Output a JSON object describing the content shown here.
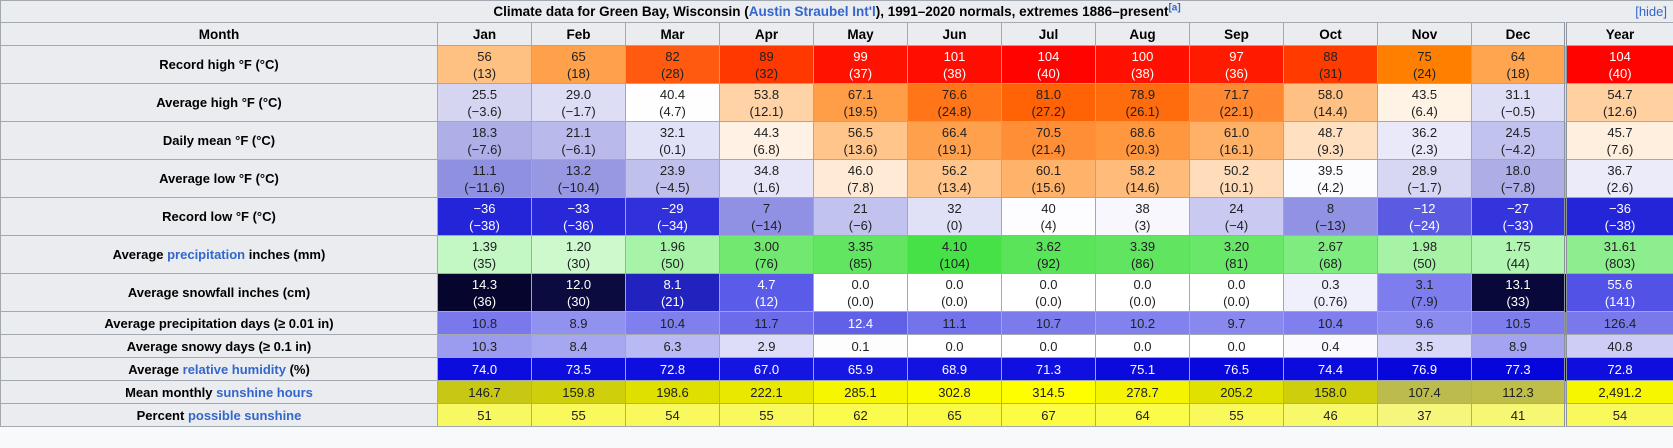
{
  "title": {
    "prefix": "Climate data for Green Bay, Wisconsin (",
    "link": "Austin Straubel Int'l",
    "suffix": "), 1991–2020 normals, extremes 1886–present",
    "note_ref": "[a]",
    "hide_label": "[hide]"
  },
  "columns": [
    "Month",
    "Jan",
    "Feb",
    "Mar",
    "Apr",
    "May",
    "Jun",
    "Jul",
    "Aug",
    "Sep",
    "Oct",
    "Nov",
    "Dec",
    "Year"
  ],
  "link_color": "#3366cc",
  "header_bg": "#eaecf0",
  "table": {
    "rows": [
      {
        "two_line": true,
        "label": [
          {
            "t": "Record high °F (°C)",
            "link": false
          }
        ],
        "cells": [
          {
            "v": "56",
            "m": "(13)",
            "bg": "#FFC182"
          },
          {
            "v": "65",
            "m": "(18)",
            "bg": "#FFA04A"
          },
          {
            "v": "82",
            "m": "(28)",
            "bg": "#FF5A0F"
          },
          {
            "v": "89",
            "m": "(32)",
            "bg": "#FF3800"
          },
          {
            "v": "99",
            "m": "(37)",
            "bg": "#FF1300",
            "fg": "#ffffff"
          },
          {
            "v": "101",
            "m": "(38)",
            "bg": "#FF0D00",
            "fg": "#ffffff"
          },
          {
            "v": "104",
            "m": "(40)",
            "bg": "#FF0300",
            "fg": "#ffffff"
          },
          {
            "v": "100",
            "m": "(38)",
            "bg": "#FF1000",
            "fg": "#ffffff"
          },
          {
            "v": "97",
            "m": "(36)",
            "bg": "#FF1A00",
            "fg": "#ffffff"
          },
          {
            "v": "88",
            "m": "(31)",
            "bg": "#FF3B00"
          },
          {
            "v": "75",
            "m": "(24)",
            "bg": "#FF8000"
          },
          {
            "v": "64",
            "m": "(18)",
            "bg": "#FFA54F"
          },
          {
            "v": "104",
            "m": "(40)",
            "bg": "#FF0300",
            "fg": "#ffffff"
          }
        ]
      },
      {
        "two_line": true,
        "label": [
          {
            "t": "Average high °F (°C)",
            "link": false
          }
        ],
        "cells": [
          {
            "v": "25.5",
            "m": "(−3.6)",
            "bg": "#D5D5F2"
          },
          {
            "v": "29.0",
            "m": "(−1.7)",
            "bg": "#DDDDF5"
          },
          {
            "v": "40.4",
            "m": "(4.7)",
            "bg": "#FEFEFF"
          },
          {
            "v": "53.8",
            "m": "(12.1)",
            "bg": "#FFD3A5"
          },
          {
            "v": "67.1",
            "m": "(19.5)",
            "bg": "#FF9E47"
          },
          {
            "v": "76.6",
            "m": "(24.8)",
            "bg": "#FF7517"
          },
          {
            "v": "81.0",
            "m": "(27.2)",
            "bg": "#FF6305"
          },
          {
            "v": "78.9",
            "m": "(26.1)",
            "bg": "#FF6C0D"
          },
          {
            "v": "71.7",
            "m": "(22.1)",
            "bg": "#FF8831"
          },
          {
            "v": "58.0",
            "m": "(14.4)",
            "bg": "#FFC183"
          },
          {
            "v": "43.5",
            "m": "(6.4)",
            "bg": "#FFF3E6"
          },
          {
            "v": "31.1",
            "m": "(−0.5)",
            "bg": "#DEDEF6"
          },
          {
            "v": "54.7",
            "m": "(12.6)",
            "bg": "#FFD0A0"
          }
        ]
      },
      {
        "two_line": true,
        "label": [
          {
            "t": "Daily mean °F (°C)",
            "link": false
          }
        ],
        "cells": [
          {
            "v": "18.3",
            "m": "(−7.6)",
            "bg": "#AFAFE8"
          },
          {
            "v": "21.1",
            "m": "(−6.1)",
            "bg": "#B9B9EB"
          },
          {
            "v": "32.1",
            "m": "(0.1)",
            "bg": "#E1E1F7"
          },
          {
            "v": "44.3",
            "m": "(6.8)",
            "bg": "#FFF1E3"
          },
          {
            "v": "56.5",
            "m": "(13.6)",
            "bg": "#FFC58B"
          },
          {
            "v": "66.4",
            "m": "(19.1)",
            "bg": "#FFA14C"
          },
          {
            "v": "70.5",
            "m": "(21.4)",
            "bg": "#FF8E36"
          },
          {
            "v": "68.6",
            "m": "(20.3)",
            "bg": "#FF973F"
          },
          {
            "v": "61.0",
            "m": "(16.1)",
            "bg": "#FFB168"
          },
          {
            "v": "48.7",
            "m": "(9.3)",
            "bg": "#FFE0C0"
          },
          {
            "v": "36.2",
            "m": "(2.3)",
            "bg": "#E9E9F9"
          },
          {
            "v": "24.5",
            "m": "(−4.2)",
            "bg": "#C2C2EE"
          },
          {
            "v": "45.7",
            "m": "(7.6)",
            "bg": "#FFEFDE"
          }
        ]
      },
      {
        "two_line": true,
        "label": [
          {
            "t": "Average low °F (°C)",
            "link": false
          }
        ],
        "cells": [
          {
            "v": "11.1",
            "m": "(−11.6)",
            "bg": "#9090E0"
          },
          {
            "v": "13.2",
            "m": "(−10.4)",
            "bg": "#9797E2"
          },
          {
            "v": "23.9",
            "m": "(−4.5)",
            "bg": "#C0C0ED"
          },
          {
            "v": "34.8",
            "m": "(1.6)",
            "bg": "#E6E6F8"
          },
          {
            "v": "46.0",
            "m": "(7.8)",
            "bg": "#FFEAD6"
          },
          {
            "v": "56.2",
            "m": "(13.4)",
            "bg": "#FFC58A"
          },
          {
            "v": "60.1",
            "m": "(15.6)",
            "bg": "#FFB269"
          },
          {
            "v": "58.2",
            "m": "(14.6)",
            "bg": "#FFBB79"
          },
          {
            "v": "50.2",
            "m": "(10.1)",
            "bg": "#FFDDBB"
          },
          {
            "v": "39.5",
            "m": "(4.2)",
            "bg": "#FCFCFE"
          },
          {
            "v": "28.9",
            "m": "(−1.7)",
            "bg": "#D7D7F3"
          },
          {
            "v": "18.0",
            "m": "(−7.8)",
            "bg": "#AEAEE7"
          },
          {
            "v": "36.7",
            "m": "(2.6)",
            "bg": "#EBEBFA"
          }
        ]
      },
      {
        "two_line": true,
        "label": [
          {
            "t": "Record low °F (°C)",
            "link": false
          }
        ],
        "cells": [
          {
            "v": "−36",
            "m": "(−38)",
            "bg": "#2424D8",
            "fg": "#ffffff"
          },
          {
            "v": "−33",
            "m": "(−36)",
            "bg": "#2828D9",
            "fg": "#ffffff"
          },
          {
            "v": "−29",
            "m": "(−34)",
            "bg": "#3131DB",
            "fg": "#ffffff"
          },
          {
            "v": "7",
            "m": "(−14)",
            "bg": "#9090E4"
          },
          {
            "v": "21",
            "m": "(−6)",
            "bg": "#C2C2EF"
          },
          {
            "v": "32",
            "m": "(0)",
            "bg": "#E0E0F7"
          },
          {
            "v": "40",
            "m": "(4)",
            "bg": "#FDFDFF"
          },
          {
            "v": "38",
            "m": "(3)",
            "bg": "#F7F7FD"
          },
          {
            "v": "24",
            "m": "(−4)",
            "bg": "#C9C9F1"
          },
          {
            "v": "8",
            "m": "(−13)",
            "bg": "#9292E5"
          },
          {
            "v": "−12",
            "m": "(−24)",
            "bg": "#5B5BE1",
            "fg": "#ffffff"
          },
          {
            "v": "−27",
            "m": "(−33)",
            "bg": "#3434DC",
            "fg": "#ffffff"
          },
          {
            "v": "−36",
            "m": "(−38)",
            "bg": "#2424D8",
            "fg": "#ffffff"
          }
        ]
      },
      {
        "two_line": true,
        "label": [
          {
            "t": "Average ",
            "link": false
          },
          {
            "t": "precipitation",
            "link": true
          },
          {
            "t": " inches (mm)",
            "link": false
          }
        ],
        "cells": [
          {
            "v": "1.39",
            "m": "(35)",
            "bg": "#C3F7C3"
          },
          {
            "v": "1.20",
            "m": "(30)",
            "bg": "#CDF9CD"
          },
          {
            "v": "1.96",
            "m": "(50)",
            "bg": "#A7F3A7"
          },
          {
            "v": "3.00",
            "m": "(76)",
            "bg": "#71E971"
          },
          {
            "v": "3.35",
            "m": "(85)",
            "bg": "#62E662"
          },
          {
            "v": "4.10",
            "m": "(104)",
            "bg": "#46E146"
          },
          {
            "v": "3.62",
            "m": "(92)",
            "bg": "#59E459"
          },
          {
            "v": "3.39",
            "m": "(86)",
            "bg": "#61E561"
          },
          {
            "v": "3.20",
            "m": "(81)",
            "bg": "#68E768"
          },
          {
            "v": "2.67",
            "m": "(68)",
            "bg": "#7FEC7F"
          },
          {
            "v": "1.98",
            "m": "(50)",
            "bg": "#A6F3A6"
          },
          {
            "v": "1.75",
            "m": "(44)",
            "bg": "#B0F5B0"
          },
          {
            "v": "31.61",
            "m": "(803)",
            "bg": "#8CEE8C"
          }
        ]
      },
      {
        "two_line": true,
        "label": [
          {
            "t": "Average snowfall inches (cm)",
            "link": false
          }
        ],
        "cells": [
          {
            "v": "14.3",
            "m": "(36)",
            "bg": "#05052D",
            "fg": "#ffffff"
          },
          {
            "v": "12.0",
            "m": "(30)",
            "bg": "#0B0B3F",
            "fg": "#ffffff"
          },
          {
            "v": "8.1",
            "m": "(21)",
            "bg": "#2222BE",
            "fg": "#ffffff"
          },
          {
            "v": "4.7",
            "m": "(12)",
            "bg": "#5B5BE9",
            "fg": "#ffffff"
          },
          {
            "v": "0.0",
            "m": "(0.0)",
            "bg": "#FFFFFF"
          },
          {
            "v": "0.0",
            "m": "(0.0)",
            "bg": "#FFFFFF"
          },
          {
            "v": "0.0",
            "m": "(0.0)",
            "bg": "#FFFFFF"
          },
          {
            "v": "0.0",
            "m": "(0.0)",
            "bg": "#FFFFFF"
          },
          {
            "v": "0.0",
            "m": "(0.0)",
            "bg": "#FFFFFF"
          },
          {
            "v": "0.3",
            "m": "(0.76)",
            "bg": "#F0F0FC"
          },
          {
            "v": "3.1",
            "m": "(7.9)",
            "bg": "#7D7DEE"
          },
          {
            "v": "13.1",
            "m": "(33)",
            "bg": "#08083A",
            "fg": "#ffffff"
          },
          {
            "v": "55.6",
            "m": "(141)",
            "bg": "#5252E7",
            "fg": "#ffffff"
          }
        ]
      },
      {
        "two_line": false,
        "label": [
          {
            "t": "Average precipitation days (≥ 0.01 in)",
            "link": false
          }
        ],
        "cells": [
          {
            "v": "10.8",
            "bg": "#7979EC"
          },
          {
            "v": "8.9",
            "bg": "#9191F0"
          },
          {
            "v": "10.4",
            "bg": "#7F7FED"
          },
          {
            "v": "11.7",
            "bg": "#6C6CEA"
          },
          {
            "v": "12.4",
            "bg": "#6161E8",
            "fg": "#ffffff"
          },
          {
            "v": "11.1",
            "bg": "#7373EB"
          },
          {
            "v": "10.7",
            "bg": "#7B7BEC"
          },
          {
            "v": "10.2",
            "bg": "#8282EE"
          },
          {
            "v": "9.7",
            "bg": "#8888EF"
          },
          {
            "v": "10.4",
            "bg": "#7F7FED"
          },
          {
            "v": "9.6",
            "bg": "#8A8AEF"
          },
          {
            "v": "10.5",
            "bg": "#7D7DED"
          },
          {
            "v": "126.4",
            "bg": "#7979EC"
          }
        ]
      },
      {
        "two_line": false,
        "label": [
          {
            "t": "Average snowy days (≥ 0.1 in)",
            "link": false
          }
        ],
        "cells": [
          {
            "v": "10.3",
            "bg": "#9B9BEF"
          },
          {
            "v": "8.4",
            "bg": "#A6A6F1"
          },
          {
            "v": "6.3",
            "bg": "#B9B9F4"
          },
          {
            "v": "2.9",
            "bg": "#DDDDF9"
          },
          {
            "v": "0.1",
            "bg": "#FDFDFE"
          },
          {
            "v": "0.0",
            "bg": "#FFFFFF"
          },
          {
            "v": "0.0",
            "bg": "#FFFFFF"
          },
          {
            "v": "0.0",
            "bg": "#FFFFFF"
          },
          {
            "v": "0.0",
            "bg": "#FFFFFF"
          },
          {
            "v": "0.4",
            "bg": "#F9F9FE"
          },
          {
            "v": "3.5",
            "bg": "#D7D7F8"
          },
          {
            "v": "8.9",
            "bg": "#A3A3F1"
          },
          {
            "v": "40.8",
            "bg": "#CDCDF6"
          }
        ]
      },
      {
        "two_line": false,
        "label": [
          {
            "t": "Average ",
            "link": false
          },
          {
            "t": "relative humidity",
            "link": true
          },
          {
            "t": " (%)",
            "link": false
          }
        ],
        "cells": [
          {
            "v": "74.0",
            "bg": "#0C0CDE",
            "fg": "#ffffff"
          },
          {
            "v": "73.5",
            "bg": "#0D0DDE",
            "fg": "#ffffff"
          },
          {
            "v": "72.8",
            "bg": "#0E0EDF",
            "fg": "#ffffff"
          },
          {
            "v": "67.0",
            "bg": "#1515E2",
            "fg": "#ffffff"
          },
          {
            "v": "65.9",
            "bg": "#1717E3",
            "fg": "#ffffff"
          },
          {
            "v": "68.9",
            "bg": "#1212E1",
            "fg": "#ffffff"
          },
          {
            "v": "71.3",
            "bg": "#0F0FE0",
            "fg": "#ffffff"
          },
          {
            "v": "75.1",
            "bg": "#0A0ADD",
            "fg": "#ffffff"
          },
          {
            "v": "76.5",
            "bg": "#0808DC",
            "fg": "#ffffff"
          },
          {
            "v": "74.4",
            "bg": "#0B0BDE",
            "fg": "#ffffff"
          },
          {
            "v": "76.9",
            "bg": "#0707DB",
            "fg": "#ffffff"
          },
          {
            "v": "77.3",
            "bg": "#0606DB",
            "fg": "#ffffff"
          },
          {
            "v": "72.8",
            "bg": "#0E0EDF",
            "fg": "#ffffff"
          }
        ]
      },
      {
        "two_line": false,
        "label": [
          {
            "t": "Mean monthly ",
            "link": false
          },
          {
            "t": "sunshine hours",
            "link": true
          }
        ],
        "cells": [
          {
            "v": "146.7",
            "bg": "#C7C714"
          },
          {
            "v": "159.8",
            "bg": "#CFCF0C"
          },
          {
            "v": "198.6",
            "bg": "#DFDF00"
          },
          {
            "v": "222.1",
            "bg": "#E8E800"
          },
          {
            "v": "285.1",
            "bg": "#F6F600"
          },
          {
            "v": "302.8",
            "bg": "#FBFB00"
          },
          {
            "v": "314.5",
            "bg": "#FEFE00"
          },
          {
            "v": "278.7",
            "bg": "#F4F400"
          },
          {
            "v": "205.2",
            "bg": "#E1E100"
          },
          {
            "v": "158.0",
            "bg": "#CECE0D"
          },
          {
            "v": "107.4",
            "bg": "#BCBC4E"
          },
          {
            "v": "112.3",
            "bg": "#BEBE48"
          },
          {
            "v": "2,491.2",
            "bg": "#F6F600"
          }
        ]
      },
      {
        "two_line": false,
        "label": [
          {
            "t": "Percent ",
            "link": false
          },
          {
            "t": "possible sunshine",
            "link": true
          }
        ],
        "cells": [
          {
            "v": "51",
            "bg": "#F8F862"
          },
          {
            "v": "55",
            "bg": "#F9F95B"
          },
          {
            "v": "54",
            "bg": "#F9F95D"
          },
          {
            "v": "55",
            "bg": "#F9F95B"
          },
          {
            "v": "62",
            "bg": "#FBFB4E"
          },
          {
            "v": "65",
            "bg": "#FBFB47"
          },
          {
            "v": "67",
            "bg": "#FCFC43"
          },
          {
            "v": "64",
            "bg": "#FBFB49"
          },
          {
            "v": "55",
            "bg": "#F9F95B"
          },
          {
            "v": "46",
            "bg": "#F8F86B"
          },
          {
            "v": "37",
            "bg": "#F6F67C"
          },
          {
            "v": "41",
            "bg": "#F7F774"
          },
          {
            "v": "54",
            "bg": "#F9F95D"
          }
        ]
      }
    ]
  }
}
